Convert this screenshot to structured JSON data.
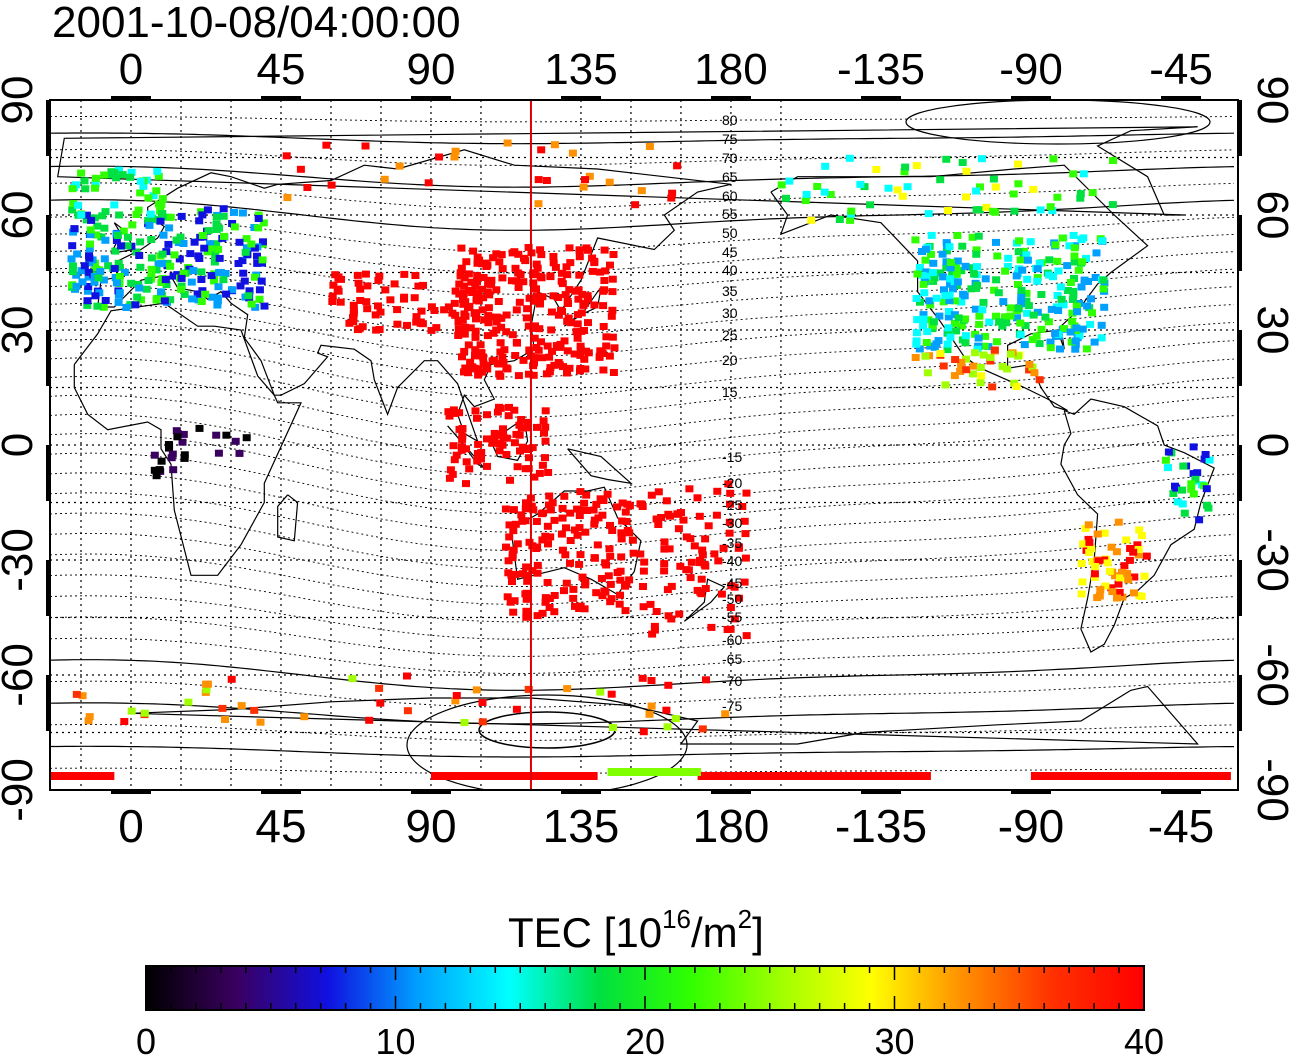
{
  "timestamp": "2001-10-08/04:00:00",
  "map": {
    "x_ticks_top": [
      "0",
      "45",
      "90",
      "135",
      "180",
      "-135",
      "-90",
      "-45"
    ],
    "x_ticks_bottom": [
      "0",
      "45",
      "90",
      "135",
      "180",
      "-135",
      "-90",
      "-45"
    ],
    "y_ticks_left": [
      "90",
      "60",
      "30",
      "0",
      "-30",
      "-60",
      "-90"
    ],
    "y_ticks_right": [
      "90",
      "60",
      "30",
      "0",
      "-30",
      "-60",
      "-90"
    ],
    "contour_labels": [
      "80",
      "75",
      "70",
      "65",
      "60",
      "55",
      "50",
      "45",
      "40",
      "35",
      "30",
      "25",
      "20",
      "15",
      "-15",
      "-20",
      "-25",
      "-30",
      "-35",
      "-40",
      "-45",
      "-50",
      "-55",
      "-60",
      "-65",
      "-70",
      "-75"
    ],
    "marker_longitude": 120
  },
  "colorbar": {
    "title_prefix": "TEC  [10",
    "title_exp1": "16",
    "title_mid": "/m",
    "title_exp2": "2",
    "title_suffix": "]",
    "ticks": [
      "0",
      "10",
      "20",
      "30",
      "40"
    ],
    "colors": [
      "#000000",
      "#3a0060",
      "#1010e0",
      "#00a0ff",
      "#00ffff",
      "#00e040",
      "#30ff00",
      "#a0ff00",
      "#ffff00",
      "#ff9000",
      "#ff3000",
      "#ff0000"
    ]
  }
}
